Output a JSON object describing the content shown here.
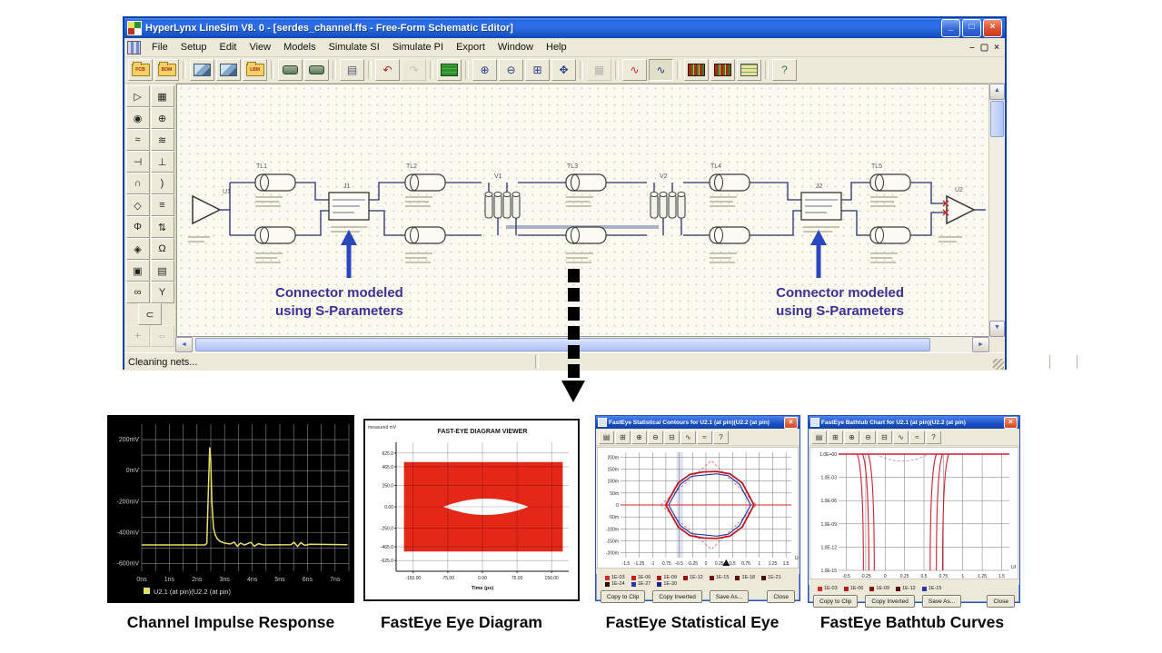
{
  "main_window": {
    "title": "HyperLynx LineSim V8. 0 - [serdes_channel.ffs - Free-Form Schematic Editor]",
    "caption_buttons": {
      "minimize": "_",
      "maximize": "□",
      "close": "×"
    },
    "menu": [
      "File",
      "Setup",
      "Edit",
      "View",
      "Models",
      "Simulate SI",
      "Simulate PI",
      "Export",
      "Window",
      "Help"
    ],
    "mdi_buttons": [
      "–",
      "▢",
      "×"
    ],
    "toolbar": [
      {
        "name": "open-pcb-button",
        "kind": "folder",
        "tag": "PCB"
      },
      {
        "name": "open-bom-button",
        "kind": "folder",
        "tag": "BOM"
      },
      {
        "sep": true
      },
      {
        "name": "open-schematic-button",
        "kind": "pic"
      },
      {
        "name": "save-schematic-button",
        "kind": "pic"
      },
      {
        "name": "open-lbm-button",
        "kind": "folder",
        "tag": "LBM"
      },
      {
        "sep": true
      },
      {
        "name": "new-part-button",
        "kind": "part"
      },
      {
        "name": "copy-part-button",
        "kind": "part"
      },
      {
        "sep": true
      },
      {
        "name": "print-button",
        "kind": "glyph",
        "glyph": "▤",
        "color": "#555577"
      },
      {
        "sep": true
      },
      {
        "name": "undo-button",
        "kind": "glyph",
        "glyph": "↶",
        "color": "#aa2222"
      },
      {
        "name": "redo-button",
        "kind": "glyph",
        "glyph": "↷",
        "color": "#888888",
        "disabled": true
      },
      {
        "sep": true
      },
      {
        "name": "board-wizard-button",
        "kind": "board"
      },
      {
        "sep": true
      },
      {
        "name": "zoom-in-button",
        "kind": "glyph",
        "glyph": "⊕",
        "color": "#223a8c"
      },
      {
        "name": "zoom-out-button",
        "kind": "glyph",
        "glyph": "⊖",
        "color": "#223a8c"
      },
      {
        "name": "zoom-all-button",
        "kind": "glyph",
        "glyph": "⊞",
        "color": "#223a8c"
      },
      {
        "name": "pan-button",
        "kind": "glyph",
        "glyph": "✥",
        "color": "#223a8c"
      },
      {
        "sep": true
      },
      {
        "name": "spreadsheet-button",
        "kind": "glyph",
        "glyph": "▦",
        "color": "#666666",
        "disabled": true
      },
      {
        "sep": true
      },
      {
        "name": "run-interactive-sim-button",
        "kind": "glyph",
        "glyph": "∿",
        "color": "#c22222"
      },
      {
        "name": "oscilloscope-button",
        "kind": "glyph",
        "glyph": "∿",
        "color": "#223a8c",
        "pressed": true
      },
      {
        "sep": true
      },
      {
        "name": "stackup-viewer-button",
        "kind": "board2"
      },
      {
        "name": "padstack-viewer-button",
        "kind": "board2"
      },
      {
        "name": "termination-wizard-button",
        "kind": "sheet"
      },
      {
        "sep": true
      },
      {
        "name": "help-button",
        "kind": "glyph",
        "glyph": "?",
        "color": "#3a7a3a"
      }
    ],
    "palette": [
      [
        {
          "name": "select-tool",
          "glyph": "▷"
        },
        {
          "name": "add-net-tool",
          "glyph": "▦"
        }
      ],
      [
        {
          "name": "ic-tool",
          "glyph": "◉"
        },
        {
          "name": "oscillator-tool",
          "glyph": "⊕"
        }
      ],
      [
        {
          "name": "resistor-tool",
          "glyph": "≈"
        },
        {
          "name": "coupled-resistor-tool",
          "glyph": "≋"
        }
      ],
      [
        {
          "name": "capacitor-tool",
          "glyph": "⊣"
        },
        {
          "name": "grounded-capacitor-tool",
          "glyph": "⊥"
        }
      ],
      [
        {
          "name": "inductor-tool",
          "glyph": "∩"
        },
        {
          "name": "ferrite-bead-tool",
          "glyph": ")"
        }
      ],
      [
        {
          "name": "via-tool",
          "glyph": "◇"
        },
        {
          "name": "stackup-tool",
          "glyph": "≡"
        }
      ],
      [
        {
          "name": "transmission-line-tool",
          "glyph": "Φ"
        },
        {
          "name": "coupled-line-tool",
          "glyph": "⇅"
        }
      ],
      [
        {
          "name": "probe-tool",
          "glyph": "◈"
        },
        {
          "name": "termination-tool",
          "glyph": "Ω"
        }
      ],
      [
        {
          "name": "ic-model-tool",
          "glyph": "▣"
        },
        {
          "name": "spreadsheet-tool",
          "glyph": "▤"
        }
      ],
      [
        {
          "name": "coupled-lines-tool",
          "glyph": "∞"
        },
        {
          "name": "y-junction-tool",
          "glyph": "Y"
        }
      ],
      [
        {
          "name": "jumper-tool",
          "glyph": "⊂"
        }
      ],
      [
        {
          "name": "move-tool",
          "glyph": "+",
          "disabled": true
        },
        {
          "name": "rotate-tool",
          "glyph": "⇔",
          "disabled": true
        }
      ]
    ],
    "status": "Cleaning nets..."
  },
  "schematic": {
    "ic_refs": [
      "U1",
      "U2"
    ],
    "tl_refs": [
      "TL1",
      "TL2",
      "TL3",
      "TL4",
      "TL5"
    ],
    "sparam_refs": [
      "J1",
      "J2"
    ],
    "connector_refs": [
      "V1",
      "V2"
    ],
    "annotation_line1": "Connector modeled",
    "annotation_line2": "using S-Parameters"
  },
  "captions": [
    "Channel Impulse Response",
    "FastEye Eye Diagram",
    "FastEye Statistical Eye",
    "FastEye Bathtub Curves"
  ],
  "chart_data": [
    {
      "panel": "impulse",
      "type": "line",
      "title": "Channel Impulse Response",
      "bg": "#000000",
      "grid_color": "#8a8a8a",
      "trace_color": "#e8e066",
      "xlim": [
        0,
        7.5
      ],
      "ylim": [
        -650,
        300
      ],
      "x_grid_step": 0.5,
      "y_grid_step": 100,
      "x_ticks": [
        {
          "v": 0,
          "label": "0ns"
        },
        {
          "v": 1,
          "label": "1ns"
        },
        {
          "v": 2,
          "label": "2ns"
        },
        {
          "v": 3,
          "label": "3ns"
        },
        {
          "v": 4,
          "label": "4ns"
        },
        {
          "v": 5,
          "label": "5ns"
        },
        {
          "v": 6,
          "label": "6ns"
        },
        {
          "v": 7,
          "label": "7ns"
        }
      ],
      "y_ticks": [
        {
          "v": 200,
          "label": "200mV"
        },
        {
          "v": 0,
          "label": "0mV"
        },
        {
          "v": -200,
          "label": "-200mV"
        },
        {
          "v": -400,
          "label": "-400mV"
        },
        {
          "v": -600,
          "label": "-600mV"
        }
      ],
      "legend": "U2.1 (at pin)(U2.2 (at pin)",
      "points": [
        [
          0,
          -480
        ],
        [
          2.3,
          -480
        ],
        [
          2.36,
          -468
        ],
        [
          2.42,
          -80
        ],
        [
          2.46,
          150
        ],
        [
          2.5,
          60
        ],
        [
          2.54,
          -200
        ],
        [
          2.6,
          -370
        ],
        [
          2.66,
          -415
        ],
        [
          2.74,
          -442
        ],
        [
          2.85,
          -458
        ],
        [
          3.0,
          -468
        ],
        [
          3.2,
          -474
        ],
        [
          3.35,
          -462
        ],
        [
          3.46,
          -489
        ],
        [
          3.58,
          -468
        ],
        [
          3.72,
          -480
        ],
        [
          3.95,
          -463
        ],
        [
          4.08,
          -489
        ],
        [
          4.22,
          -472
        ],
        [
          4.4,
          -480
        ],
        [
          5.4,
          -478
        ],
        [
          5.52,
          -463
        ],
        [
          5.64,
          -490
        ],
        [
          5.76,
          -465
        ],
        [
          5.9,
          -482
        ],
        [
          6.1,
          -476
        ],
        [
          7.45,
          -478
        ]
      ]
    },
    {
      "panel": "eye",
      "type": "area",
      "title": "FAST-EYE DIAGRAM VIEWER",
      "corner_label": "measured mV",
      "xlabel": "Time (ps)",
      "xlim": [
        -187,
        187
      ],
      "ylim": [
        -750,
        750
      ],
      "x_ticks": [
        {
          "v": -150,
          "label": "-150.00"
        },
        {
          "v": -75,
          "label": "-75.00"
        },
        {
          "v": 0,
          "label": "0.00"
        },
        {
          "v": 75,
          "label": "75.00"
        },
        {
          "v": 150,
          "label": "150.00"
        }
      ],
      "y_ticks": [
        {
          "v": 625,
          "label": "625.0"
        },
        {
          "v": 465,
          "label": "465.0"
        },
        {
          "v": 250,
          "label": "250.0"
        },
        {
          "v": 0,
          "label": "0.00"
        },
        {
          "v": -250,
          "label": "-250.0"
        },
        {
          "v": -465,
          "label": "-465.0"
        },
        {
          "v": -625,
          "label": "-625.0"
        }
      ],
      "fill_color": "#e52718",
      "mask": {
        "x1": -170,
        "x2": 174,
        "y1": -520,
        "y2": 520
      },
      "eye_opening": {
        "left": -85,
        "right": 100,
        "half_height": 95
      }
    },
    {
      "panel": "statistical_eye",
      "type": "contour",
      "window_title": "FastEye Statistical Contours for U2.1 (at pin)(U2.2 (at pin)",
      "x_unit": "UI",
      "xlim": [
        -1.6,
        1.6
      ],
      "ylim": [
        -220,
        220
      ],
      "x_ticks": [
        {
          "v": -1.5,
          "label": "-1.5"
        },
        {
          "v": -1.25,
          "label": "-1.25"
        },
        {
          "v": -1,
          "label": "-1"
        },
        {
          "v": -0.75,
          "label": "-0.75"
        },
        {
          "v": -0.5,
          "label": "-0.5"
        },
        {
          "v": -0.25,
          "label": "-0.25"
        },
        {
          "v": 0,
          "label": "0"
        },
        {
          "v": 0.25,
          "label": "0.25"
        },
        {
          "v": 0.5,
          "label": "0.5"
        },
        {
          "v": 0.75,
          "label": "0.75"
        },
        {
          "v": 1,
          "label": "1"
        },
        {
          "v": 1.25,
          "label": "1.25"
        },
        {
          "v": 1.5,
          "label": "1.5"
        }
      ],
      "y_ticks": [
        {
          "v": 200,
          "label": "200m"
        },
        {
          "v": 150,
          "label": "150m"
        },
        {
          "v": 100,
          "label": "100m"
        },
        {
          "v": 50,
          "label": "50m"
        },
        {
          "v": 0,
          "label": "0"
        },
        {
          "v": -50,
          "label": "-50m"
        },
        {
          "v": -100,
          "label": "-100m"
        },
        {
          "v": -150,
          "label": "-150m"
        },
        {
          "v": -200,
          "label": "-200m"
        }
      ],
      "center_line_color": "#dd2222",
      "contours": {
        "outer_dashed": [
          [
            -0.85,
            0
          ],
          [
            0.1,
            185
          ],
          [
            0.95,
            0
          ],
          [
            0.1,
            -185
          ]
        ],
        "red": [
          [
            -0.75,
            0
          ],
          [
            -0.52,
            92
          ],
          [
            -0.3,
            128
          ],
          [
            -0.05,
            138
          ],
          [
            0.2,
            140
          ],
          [
            0.45,
            130
          ],
          [
            0.68,
            92
          ],
          [
            0.9,
            0
          ],
          [
            0.68,
            -92
          ],
          [
            0.45,
            -130
          ],
          [
            0.2,
            -140
          ],
          [
            -0.05,
            -138
          ],
          [
            -0.3,
            -128
          ],
          [
            -0.52,
            -92
          ]
        ],
        "blue": [
          [
            -0.7,
            0
          ],
          [
            -0.48,
            86
          ],
          [
            -0.27,
            120
          ],
          [
            0.2,
            130
          ],
          [
            0.42,
            122
          ],
          [
            0.63,
            86
          ],
          [
            0.84,
            0
          ],
          [
            0.63,
            -86
          ],
          [
            0.42,
            -122
          ],
          [
            0.2,
            -130
          ],
          [
            -0.27,
            -120
          ],
          [
            -0.48,
            -86
          ]
        ]
      },
      "marker_x": 0.38,
      "legend": [
        {
          "label": "1E-03",
          "color": "#d42a2a"
        },
        {
          "label": "1E-06",
          "color": "#c02020"
        },
        {
          "label": "1E-09",
          "color": "#a81818"
        },
        {
          "label": "1E-12",
          "color": "#901010"
        },
        {
          "label": "1E-15",
          "color": "#780c0c"
        },
        {
          "label": "1E-18",
          "color": "#600808"
        },
        {
          "label": "1E-21",
          "color": "#4a0606"
        },
        {
          "label": "1E-24",
          "color": "#380404"
        },
        {
          "label": "1E-27",
          "color": "#2a35a8"
        },
        {
          "label": "1E-30",
          "color": "#1a2488"
        }
      ],
      "buttons": [
        "Copy to Clip",
        "Copy Inverted",
        "Save As...",
        "Close"
      ]
    },
    {
      "panel": "bathtub",
      "type": "line",
      "window_title": "FastEye Bathtub Chart for U2.1 (at pin)(U2.2 (at pin)",
      "x_unit": "UI",
      "xlim": [
        -0.6,
        1.6
      ],
      "ylim_decades": [
        0,
        -15
      ],
      "x_ticks": [
        {
          "v": -0.5,
          "label": "-0.5"
        },
        {
          "v": -0.25,
          "label": "-0.25"
        },
        {
          "v": 0,
          "label": "0"
        },
        {
          "v": 0.25,
          "label": "0.25"
        },
        {
          "v": 0.5,
          "label": "0.5"
        },
        {
          "v": 0.75,
          "label": "0.75"
        },
        {
          "v": 1,
          "label": "1"
        },
        {
          "v": 1.25,
          "label": "1.25"
        },
        {
          "v": 1.5,
          "label": "1.5"
        }
      ],
      "y_ticks": [
        {
          "d": 0,
          "label": "1.0E+00"
        },
        {
          "d": -3,
          "label": "1.0E-03"
        },
        {
          "d": -6,
          "label": "1.0E-06"
        },
        {
          "d": -9,
          "label": "1.0E-09"
        },
        {
          "d": -12,
          "label": "1.0E-12"
        },
        {
          "d": -15,
          "label": "1.0E-15"
        }
      ],
      "curve_color": "#cc2030",
      "walls_left": [
        -0.28,
        -0.21,
        -0.14
      ],
      "walls_right": [
        0.58,
        0.66,
        0.74
      ],
      "legend": [
        {
          "label": "1E-03",
          "color": "#d42a2a"
        },
        {
          "label": "1E-06",
          "color": "#b01c1c"
        },
        {
          "label": "1E-09",
          "color": "#8c1212"
        },
        {
          "label": "1E-12",
          "color": "#5c0808"
        },
        {
          "label": "1E-15",
          "color": "#2a35a8"
        }
      ],
      "buttons": [
        "Copy to Clip",
        "Copy Inverted",
        "Save As...",
        "Close"
      ]
    }
  ]
}
